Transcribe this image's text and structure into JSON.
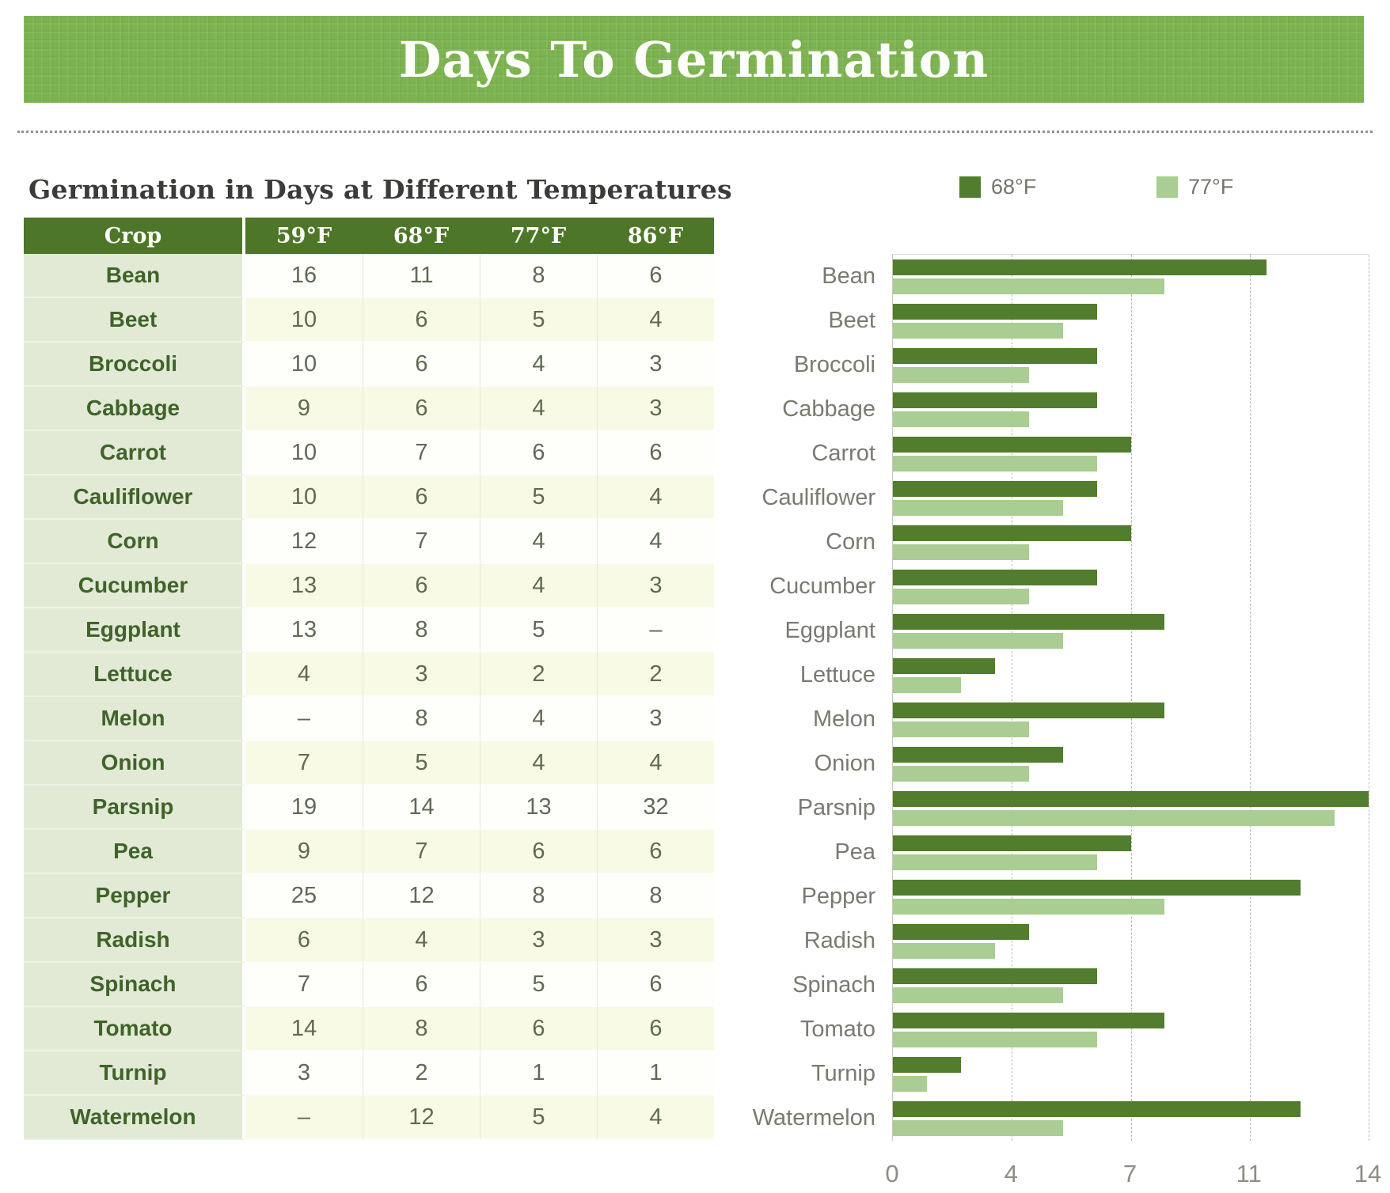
{
  "banner": {
    "title": "Days To Germination"
  },
  "table": {
    "title": "Germination in Days at Different Temperatures",
    "columns": [
      "Crop",
      "59°F",
      "68°F",
      "77°F",
      "86°F"
    ],
    "rows": [
      [
        "Bean",
        "16",
        "11",
        "8",
        "6"
      ],
      [
        "Beet",
        "10",
        "6",
        "5",
        "4"
      ],
      [
        "Broccoli",
        "10",
        "6",
        "4",
        "3"
      ],
      [
        "Cabbage",
        "9",
        "6",
        "4",
        "3"
      ],
      [
        "Carrot",
        "10",
        "7",
        "6",
        "6"
      ],
      [
        "Cauliflower",
        "10",
        "6",
        "5",
        "4"
      ],
      [
        "Corn",
        "12",
        "7",
        "4",
        "4"
      ],
      [
        "Cucumber",
        "13",
        "6",
        "4",
        "3"
      ],
      [
        "Eggplant",
        "13",
        "8",
        "5",
        "–"
      ],
      [
        "Lettuce",
        "4",
        "3",
        "2",
        "2"
      ],
      [
        "Melon",
        "–",
        "8",
        "4",
        "3"
      ],
      [
        "Onion",
        "7",
        "5",
        "4",
        "4"
      ],
      [
        "Parsnip",
        "19",
        "14",
        "13",
        "32"
      ],
      [
        "Pea",
        "9",
        "7",
        "6",
        "6"
      ],
      [
        "Pepper",
        "25",
        "12",
        "8",
        "8"
      ],
      [
        "Radish",
        "6",
        "4",
        "3",
        "3"
      ],
      [
        "Spinach",
        "7",
        "6",
        "5",
        "6"
      ],
      [
        "Tomato",
        "14",
        "8",
        "6",
        "6"
      ],
      [
        "Turnip",
        "3",
        "2",
        "1",
        "1"
      ],
      [
        "Watermelon",
        "–",
        "12",
        "5",
        "4"
      ]
    ]
  },
  "chart_data": {
    "type": "bar",
    "orientation": "horizontal",
    "title": "",
    "xlabel": "",
    "ylabel": "",
    "categories": [
      "Bean",
      "Beet",
      "Broccoli",
      "Cabbage",
      "Carrot",
      "Cauliflower",
      "Corn",
      "Cucumber",
      "Eggplant",
      "Lettuce",
      "Melon",
      "Onion",
      "Parsnip",
      "Pea",
      "Pepper",
      "Radish",
      "Spinach",
      "Tomato",
      "Turnip",
      "Watermelon"
    ],
    "series": [
      {
        "name": "68°F",
        "color": "#527C2E",
        "values": [
          11,
          6,
          6,
          6,
          7,
          6,
          7,
          6,
          8,
          3,
          8,
          5,
          14,
          7,
          12,
          4,
          6,
          8,
          2,
          12
        ]
      },
      {
        "name": "77°F",
        "color": "#A9CD92",
        "values": [
          8,
          5,
          4,
          4,
          6,
          5,
          4,
          4,
          5,
          2,
          4,
          4,
          13,
          6,
          8,
          3,
          5,
          6,
          1,
          5
        ]
      }
    ],
    "xlim": [
      0,
      14
    ],
    "x_tick_labels": [
      "0",
      "4",
      "7",
      "11",
      "14"
    ],
    "x_tick_positions": [
      0,
      0.25,
      0.5,
      0.75,
      1
    ],
    "grid": "dashed-vertical",
    "legend_position": "top"
  },
  "colors": {
    "banner_green": "#7CB350",
    "header_green": "#4E7629",
    "crop_cell_green": "#E2EAD6",
    "row_white": "#FEFEFB",
    "row_pale_yellow": "#F9FAE5",
    "bar_dark": "#527C2E",
    "bar_light": "#A9CD92"
  }
}
